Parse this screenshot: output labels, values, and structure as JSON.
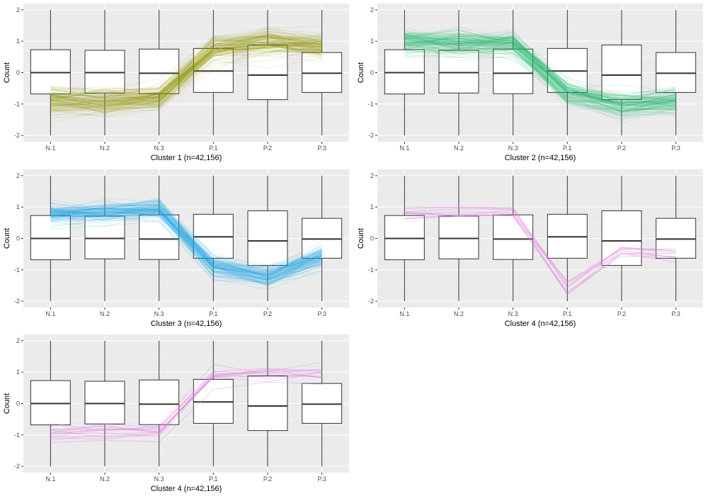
{
  "chart_data": [
    {
      "type": "box",
      "title": "",
      "xlabel": "Cluster 1 (n=42,156)",
      "ylabel": "Count",
      "categories": [
        "N.1",
        "N.2",
        "N.3",
        "P.1",
        "P.2",
        "P.3"
      ],
      "y_ticks": [
        "-2",
        "-1",
        "0",
        "1",
        "2"
      ],
      "ylim": [
        -2.2,
        2.2
      ],
      "grid": true,
      "boxes": [
        {
          "q1": -0.68,
          "median": 0.0,
          "q3": 0.73,
          "whisker_low": -2.0,
          "whisker_high": 2.0
        },
        {
          "q1": -0.65,
          "median": 0.0,
          "q3": 0.71,
          "whisker_low": -2.0,
          "whisker_high": 2.0
        },
        {
          "q1": -0.67,
          "median": -0.02,
          "q3": 0.75,
          "whisker_low": -2.0,
          "whisker_high": 2.0
        },
        {
          "q1": -0.63,
          "median": 0.05,
          "q3": 0.77,
          "whisker_low": -2.0,
          "whisker_high": 2.0
        },
        {
          "q1": -0.86,
          "median": -0.08,
          "q3": 0.88,
          "whisker_low": -2.0,
          "whisker_high": 2.0
        },
        {
          "q1": -0.63,
          "median": -0.02,
          "q3": 0.64,
          "whisker_low": -2.0,
          "whisker_high": 2.0
        }
      ],
      "trend": {
        "color": "#8f9400",
        "mean": [
          -0.9,
          -0.95,
          -0.8,
          0.75,
          0.95,
          0.85
        ],
        "spread": 0.28,
        "count": 120,
        "opacity": 0.18
      }
    },
    {
      "type": "box",
      "title": "",
      "xlabel": "Cluster 2 (n=42,156)",
      "ylabel": "Count",
      "categories": [
        "N.1",
        "N.2",
        "N.3",
        "P.1",
        "P.2",
        "P.3"
      ],
      "y_ticks": [
        "-2",
        "-1",
        "0",
        "1",
        "2"
      ],
      "ylim": [
        -2.2,
        2.2
      ],
      "grid": true,
      "boxes": [
        {
          "q1": -0.68,
          "median": 0.0,
          "q3": 0.73,
          "whisker_low": -2.0,
          "whisker_high": 2.0
        },
        {
          "q1": -0.65,
          "median": 0.0,
          "q3": 0.71,
          "whisker_low": -2.0,
          "whisker_high": 2.0
        },
        {
          "q1": -0.67,
          "median": -0.02,
          "q3": 0.75,
          "whisker_low": -2.0,
          "whisker_high": 2.0
        },
        {
          "q1": -0.63,
          "median": 0.05,
          "q3": 0.77,
          "whisker_low": -2.0,
          "whisker_high": 2.0
        },
        {
          "q1": -0.86,
          "median": -0.08,
          "q3": 0.88,
          "whisker_low": -2.0,
          "whisker_high": 2.0
        },
        {
          "q1": -0.63,
          "median": -0.02,
          "q3": 0.64,
          "whisker_low": -2.0,
          "whisker_high": 2.0
        }
      ],
      "trend": {
        "color": "#1db56a",
        "mean": [
          1.0,
          0.95,
          0.9,
          -0.65,
          -1.05,
          -0.9
        ],
        "spread": 0.28,
        "count": 120,
        "opacity": 0.18
      }
    },
    {
      "type": "box",
      "title": "",
      "xlabel": "Cluster 3 (n=42,156)",
      "ylabel": "Count",
      "categories": [
        "N.1",
        "N.2",
        "N.3",
        "P.1",
        "P.2",
        "P.3"
      ],
      "y_ticks": [
        "-2",
        "-1",
        "0",
        "1",
        "2"
      ],
      "ylim": [
        -2.2,
        2.2
      ],
      "grid": true,
      "boxes": [
        {
          "q1": -0.68,
          "median": 0.0,
          "q3": 0.73,
          "whisker_low": -2.0,
          "whisker_high": 2.0
        },
        {
          "q1": -0.65,
          "median": 0.0,
          "q3": 0.71,
          "whisker_low": -2.0,
          "whisker_high": 2.0
        },
        {
          "q1": -0.67,
          "median": -0.02,
          "q3": 0.75,
          "whisker_low": -2.0,
          "whisker_high": 2.0
        },
        {
          "q1": -0.63,
          "median": 0.05,
          "q3": 0.77,
          "whisker_low": -2.0,
          "whisker_high": 2.0
        },
        {
          "q1": -0.86,
          "median": -0.08,
          "q3": 0.88,
          "whisker_low": -2.0,
          "whisker_high": 2.0
        },
        {
          "q1": -0.63,
          "median": -0.02,
          "q3": 0.64,
          "whisker_low": -2.0,
          "whisker_high": 2.0
        }
      ],
      "trend": {
        "color": "#1ba3e8",
        "mean": [
          0.8,
          0.85,
          0.95,
          -0.9,
          -1.2,
          -0.55
        ],
        "spread": 0.22,
        "count": 100,
        "opacity": 0.2
      }
    },
    {
      "type": "box",
      "title": "",
      "xlabel": "Cluster 4 (n=42,156)",
      "ylabel": "Count",
      "categories": [
        "N.1",
        "N.2",
        "N.3",
        "P.1",
        "P.2",
        "P.3"
      ],
      "y_ticks": [
        "-2",
        "-1",
        "0",
        "1",
        "2"
      ],
      "ylim": [
        -2.2,
        2.2
      ],
      "grid": true,
      "boxes": [
        {
          "q1": -0.68,
          "median": 0.0,
          "q3": 0.73,
          "whisker_low": -2.0,
          "whisker_high": 2.0
        },
        {
          "q1": -0.65,
          "median": 0.0,
          "q3": 0.71,
          "whisker_low": -2.0,
          "whisker_high": 2.0
        },
        {
          "q1": -0.67,
          "median": -0.02,
          "q3": 0.75,
          "whisker_low": -2.0,
          "whisker_high": 2.0
        },
        {
          "q1": -0.63,
          "median": 0.05,
          "q3": 0.77,
          "whisker_low": -2.0,
          "whisker_high": 2.0
        },
        {
          "q1": -0.86,
          "median": -0.08,
          "q3": 0.88,
          "whisker_low": -2.0,
          "whisker_high": 2.0
        },
        {
          "q1": -0.63,
          "median": -0.02,
          "q3": 0.64,
          "whisker_low": -2.0,
          "whisker_high": 2.0
        }
      ],
      "trend": {
        "color": "#e07be0",
        "mean": [
          0.8,
          0.78,
          0.85,
          -1.6,
          -0.4,
          -0.5
        ],
        "spread": 0.15,
        "count": 9,
        "opacity": 0.55
      }
    },
    {
      "type": "box",
      "title": "",
      "xlabel": "Cluster 4 (n=42,156)",
      "ylabel": "Count",
      "categories": [
        "N.1",
        "N.2",
        "N.3",
        "P.1",
        "P.2",
        "P.3"
      ],
      "y_ticks": [
        "-2",
        "-1",
        "0",
        "1",
        "2"
      ],
      "ylim": [
        -2.2,
        2.2
      ],
      "grid": true,
      "boxes": [
        {
          "q1": -0.68,
          "median": 0.0,
          "q3": 0.73,
          "whisker_low": -2.0,
          "whisker_high": 2.0
        },
        {
          "q1": -0.65,
          "median": 0.0,
          "q3": 0.71,
          "whisker_low": -2.0,
          "whisker_high": 2.0
        },
        {
          "q1": -0.67,
          "median": -0.02,
          "q3": 0.75,
          "whisker_low": -2.0,
          "whisker_high": 2.0
        },
        {
          "q1": -0.63,
          "median": 0.05,
          "q3": 0.77,
          "whisker_low": -2.0,
          "whisker_high": 2.0
        },
        {
          "q1": -0.86,
          "median": -0.08,
          "q3": 0.88,
          "whisker_low": -2.0,
          "whisker_high": 2.0
        },
        {
          "q1": -0.63,
          "median": -0.02,
          "q3": 0.64,
          "whisker_low": -2.0,
          "whisker_high": 2.0
        }
      ],
      "trend": {
        "color": "#e07be0",
        "mean": [
          -1.0,
          -0.95,
          -0.95,
          0.85,
          0.95,
          0.9
        ],
        "spread": 0.2,
        "count": 14,
        "opacity": 0.45
      }
    }
  ]
}
